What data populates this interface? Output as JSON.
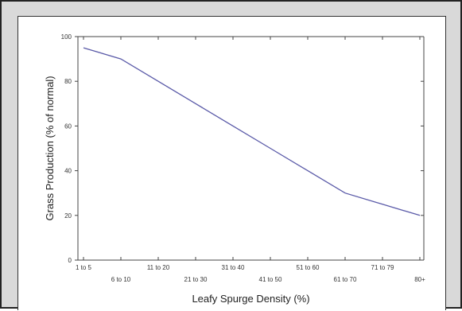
{
  "chart_data": {
    "type": "line",
    "title": "",
    "xlabel": "Leafy Spurge Density (%)",
    "ylabel": "Grass Production (% of normal)",
    "categories": [
      "1 to 5",
      "6 to 10",
      "11 to 20",
      "21 to 30",
      "31 to 40",
      "41 to 50",
      "51 to 60",
      "61 to 70",
      "71 to 79",
      "80+"
    ],
    "series": [
      {
        "values": [
          95,
          90,
          80,
          70,
          60,
          50,
          40,
          30,
          25,
          20
        ]
      }
    ],
    "ylim": [
      0,
      100
    ],
    "yticks": [
      0,
      20,
      40,
      60,
      80,
      100
    ],
    "grid": false,
    "legend": "none",
    "line_color": "#5a5aa8",
    "axis_color": "#444444"
  }
}
